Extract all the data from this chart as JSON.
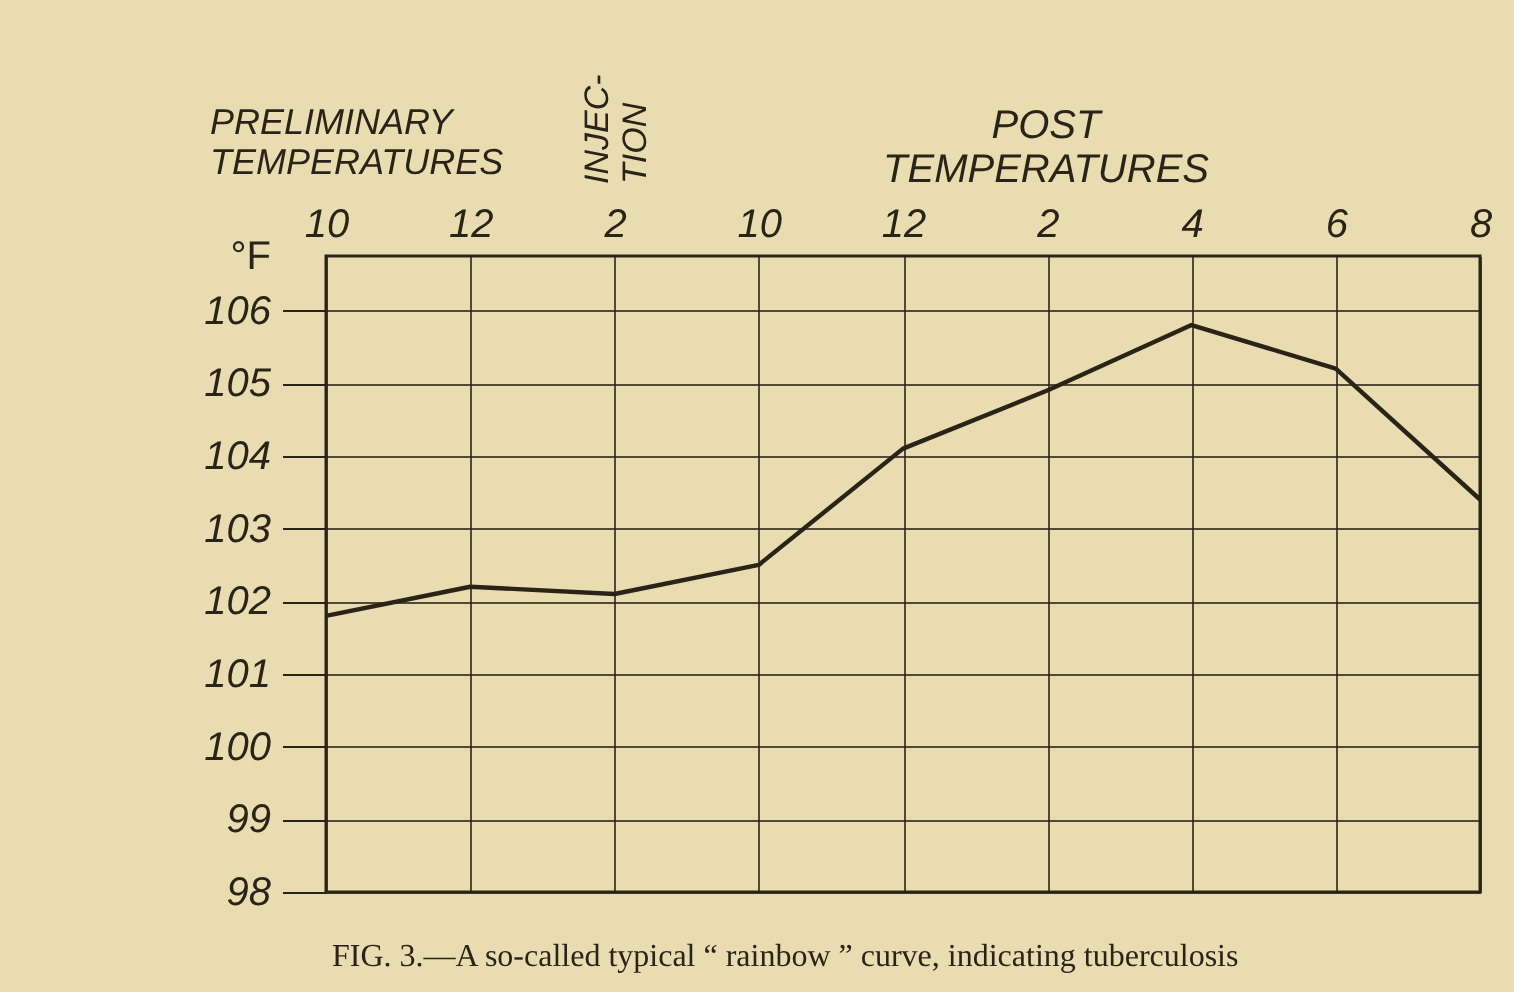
{
  "chart_data": {
    "type": "line",
    "ylabel": "°F",
    "categories": [
      "10",
      "12",
      "2",
      "10",
      "12",
      "2",
      "4",
      "6",
      "8"
    ],
    "series": [
      {
        "color": "#2a2418",
        "values": [
          101.8,
          102.2,
          102.1,
          102.5,
          104.1,
          104.9,
          105.8,
          105.2,
          103.4
        ]
      }
    ],
    "ylim": [
      98,
      106.75
    ],
    "yticks": [
      98,
      99,
      100,
      101,
      102,
      103,
      104,
      105,
      106
    ],
    "grid": true,
    "marker": "none",
    "line_style": "solid",
    "annotations": [
      "PRELIMINARY TEMPERATURES",
      "INJEC-TION",
      "POST TEMPERATURES",
      "FIG. 3.—A so-called typical “ rainbow ” curve, indicating tuberculosis"
    ]
  }
}
